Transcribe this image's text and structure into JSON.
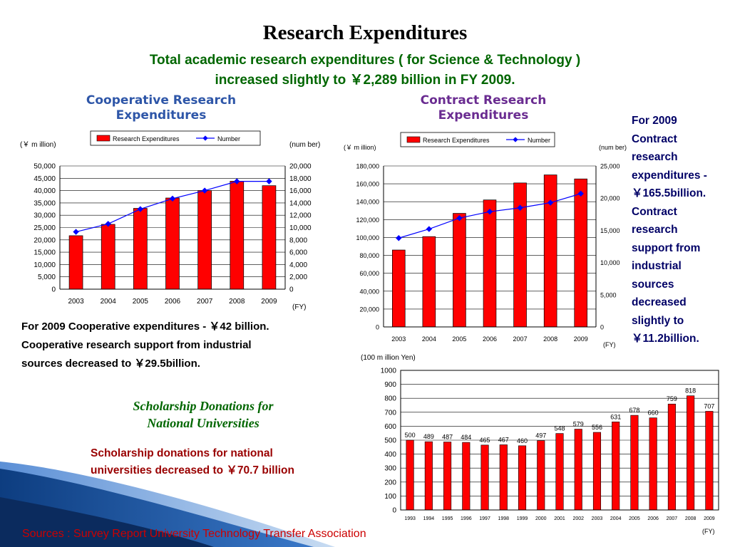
{
  "header": {
    "title": "Research Expenditures",
    "subtitle_line1": "Total academic research expenditures ( for Science & Technology )",
    "subtitle_line2": "increased slightly to ￥2,289 billion in FY 2009."
  },
  "cooperative": {
    "title_line1": "Cooperative Research",
    "title_line2": "Expenditures",
    "note_line1": "For 2009 Cooperative expenditures - ￥42 billion.",
    "note_line2": "Cooperative research support from industrial",
    "note_line3": "sources decreased to ￥29.5billion."
  },
  "contract": {
    "title_line1": "Contract Research",
    "title_line2": "Expenditures",
    "side_note": [
      "For 2009",
      "Contract",
      "research",
      "expenditures -",
      "￥165.5billion.",
      "Contract",
      "research",
      "support from",
      "industrial",
      "sources",
      "decreased",
      "slightly to",
      "￥11.2billion."
    ]
  },
  "scholarship": {
    "title_line1": "Scholarship Donations for",
    "title_line2": "National Universities",
    "note_line1": "Scholarship donations for national",
    "note_line2": "universities decreased to ￥70.7 billion"
  },
  "footer": {
    "sources": "Sources : Survey Report  University Technology Transfer Association"
  },
  "colors": {
    "bar": "#ff0000",
    "bar_edge": "#000000",
    "line": "#0000ff",
    "coop_title": "#2e56a8",
    "contract_title": "#6a2c91",
    "subtitle": "#006600",
    "source": "#cc0000"
  },
  "chart_data": [
    {
      "type": "bar",
      "id": "cooperative",
      "categories": [
        "2003",
        "2004",
        "2005",
        "2006",
        "2007",
        "2008",
        "2009"
      ],
      "series": [
        {
          "name": "Research Expenditures",
          "kind": "bar",
          "axis": "left",
          "values": [
            21700,
            26300,
            32800,
            37000,
            40000,
            43800,
            42000
          ]
        },
        {
          "name": "Number",
          "kind": "line",
          "axis": "right",
          "values": [
            9300,
            10600,
            13000,
            14700,
            16000,
            17500,
            17500
          ]
        }
      ],
      "ylabel_left": "(￥ m illion)",
      "ylabel_right": "(num ber)",
      "xlabel": "(FY)",
      "yticks_left": [
        "0",
        "5,000",
        "10,000",
        "15,000",
        "20,000",
        "25,000",
        "30,000",
        "35,000",
        "40,000",
        "45,000",
        "50,000"
      ],
      "yticks_right": [
        "0",
        "2,000",
        "4,000",
        "6,000",
        "8,000",
        "10,000",
        "12,000",
        "14,000",
        "16,000",
        "18,000",
        "20,000"
      ],
      "ylim_left": [
        0,
        50000
      ],
      "ylim_right": [
        0,
        20000
      ],
      "grid": true,
      "legend": "top-center"
    },
    {
      "type": "bar",
      "id": "contract",
      "categories": [
        "2003",
        "2004",
        "2005",
        "2006",
        "2007",
        "2008",
        "2009"
      ],
      "series": [
        {
          "name": "Research Expenditures",
          "kind": "bar",
          "axis": "left",
          "values": [
            86000,
            101000,
            127000,
            142000,
            161000,
            170000,
            165500
          ]
        },
        {
          "name": "Number",
          "kind": "line",
          "axis": "right",
          "values": [
            13800,
            15200,
            16900,
            17900,
            18500,
            19300,
            20700
          ]
        }
      ],
      "ylabel_left": "(￥ m illion)",
      "ylabel_right": "(num ber)",
      "xlabel": "(FY)",
      "yticks_left": [
        "0",
        "20,000",
        "40,000",
        "60,000",
        "80,000",
        "100,000",
        "120,000",
        "140,000",
        "160,000",
        "180,000"
      ],
      "yticks_right": [
        "0",
        "5,000",
        "10,000",
        "15,000",
        "20,000",
        "25,000"
      ],
      "ylim_left": [
        0,
        180000
      ],
      "ylim_right": [
        0,
        25000
      ],
      "grid": true,
      "legend": "top-center"
    },
    {
      "type": "bar",
      "id": "scholarship",
      "categories": [
        "1993",
        "1994",
        "1995",
        "1996",
        "1997",
        "1998",
        "1999",
        "2000",
        "2001",
        "2002",
        "2003",
        "2004",
        "2005",
        "2006",
        "2007",
        "2008",
        "2009"
      ],
      "values": [
        500,
        489,
        487,
        484,
        465,
        467,
        460,
        497,
        548,
        579,
        556,
        631,
        678,
        660,
        759,
        818,
        707
      ],
      "data_labels": [
        "500",
        "489",
        "487",
        "484",
        "465",
        "467",
        "460",
        "497",
        "548",
        "579",
        "556",
        "631",
        "678",
        "660",
        "759",
        "818",
        "707"
      ],
      "ylabel": "(100 m illion Yen)",
      "xlabel": "(FY)",
      "yticks": [
        "0",
        "100",
        "200",
        "300",
        "400",
        "500",
        "600",
        "700",
        "800",
        "900",
        "1000"
      ],
      "ylim": [
        0,
        1000
      ],
      "grid": true
    }
  ]
}
